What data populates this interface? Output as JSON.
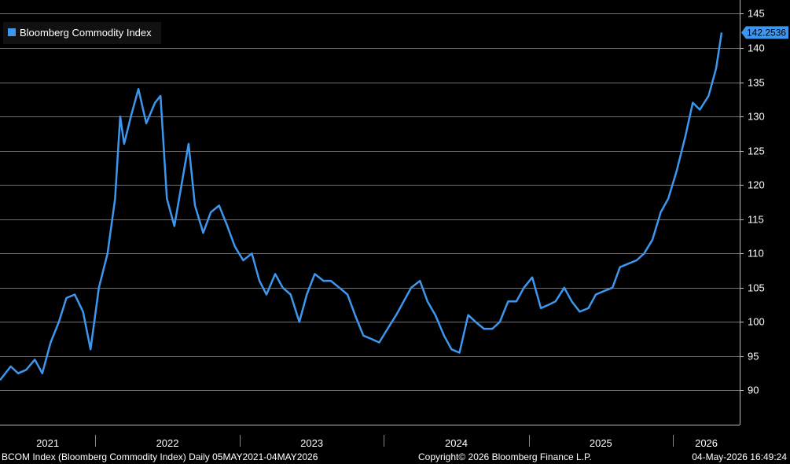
{
  "colors": {
    "background": "#000000",
    "series": "#3d97ee",
    "grid": "#6f6f6f",
    "text": "#ffffff"
  },
  "chart_data": {
    "type": "line",
    "title": "",
    "legend": {
      "placement": "top-left",
      "entries": [
        "Bloomberg Commodity Index"
      ]
    },
    "ylim": [
      85,
      147
    ],
    "y_ticks": [
      90,
      95,
      100,
      105,
      110,
      115,
      120,
      125,
      130,
      135,
      140,
      145
    ],
    "y_tick_labels": [
      "90",
      "95",
      "100",
      "105",
      "110",
      "115",
      "120",
      "125",
      "130",
      "135",
      "140",
      "145"
    ],
    "x_range": [
      "2021-05-05",
      "2026-05-04"
    ],
    "x_year_labels": [
      "2021",
      "2022",
      "2023",
      "2024",
      "2025",
      "2026"
    ],
    "grid": true,
    "last_value_label": "142.2536",
    "series": [
      {
        "name": "Bloomberg Commodity Index",
        "color": "#3d97ee",
        "x": [
          "2021-05-05",
          "2021-06-01",
          "2021-06-20",
          "2021-07-10",
          "2021-08-01",
          "2021-08-20",
          "2021-09-10",
          "2021-10-01",
          "2021-10-20",
          "2021-11-10",
          "2021-12-01",
          "2021-12-20",
          "2022-01-10",
          "2022-02-01",
          "2022-02-20",
          "2022-03-05",
          "2022-03-15",
          "2022-04-01",
          "2022-04-20",
          "2022-05-10",
          "2022-06-01",
          "2022-06-15",
          "2022-07-01",
          "2022-07-20",
          "2022-08-10",
          "2022-08-25",
          "2022-09-10",
          "2022-10-01",
          "2022-10-20",
          "2022-11-10",
          "2022-12-01",
          "2022-12-20",
          "2023-01-10",
          "2023-02-01",
          "2023-02-20",
          "2023-03-10",
          "2023-04-01",
          "2023-04-20",
          "2023-05-10",
          "2023-06-01",
          "2023-06-20",
          "2023-07-10",
          "2023-08-01",
          "2023-08-20",
          "2023-09-10",
          "2023-10-01",
          "2023-10-20",
          "2023-11-10",
          "2023-12-01",
          "2023-12-20",
          "2024-01-10",
          "2024-02-01",
          "2024-02-20",
          "2024-03-10",
          "2024-04-01",
          "2024-04-20",
          "2024-05-10",
          "2024-06-01",
          "2024-06-20",
          "2024-07-10",
          "2024-08-01",
          "2024-08-20",
          "2024-09-10",
          "2024-10-01",
          "2024-10-20",
          "2024-11-10",
          "2024-12-01",
          "2024-12-20",
          "2025-01-10",
          "2025-02-01",
          "2025-02-20",
          "2025-03-10",
          "2025-04-01",
          "2025-04-20",
          "2025-05-10",
          "2025-06-01",
          "2025-06-20",
          "2025-07-10",
          "2025-08-01",
          "2025-08-20",
          "2025-09-10",
          "2025-10-01",
          "2025-10-20",
          "2025-11-10",
          "2025-12-01",
          "2025-12-20",
          "2026-01-10",
          "2026-02-01",
          "2026-02-20",
          "2026-03-10",
          "2026-04-01",
          "2026-04-20",
          "2026-05-04"
        ],
        "values": [
          91.5,
          93.5,
          92.5,
          93,
          94.5,
          92.5,
          97,
          100,
          103.5,
          104,
          101.5,
          96,
          105,
          110,
          118,
          130,
          126,
          130,
          134,
          129,
          132,
          133,
          118,
          114,
          121,
          126,
          117,
          113,
          116,
          117,
          114,
          111,
          109,
          110,
          106,
          104,
          107,
          105,
          104,
          100,
          104,
          107,
          106,
          106,
          105,
          104,
          101,
          98,
          97.5,
          97,
          99,
          101,
          103,
          105,
          106,
          103,
          101,
          98,
          96,
          95.5,
          101,
          100,
          99,
          99,
          100,
          103,
          103,
          105,
          106.5,
          102,
          102.5,
          103,
          105,
          103,
          101.5,
          102,
          104,
          104.5,
          105,
          108,
          108.5,
          109,
          110,
          112,
          116,
          118,
          122,
          127,
          132,
          131,
          133,
          137,
          142.25
        ]
      }
    ]
  },
  "footer": {
    "left": "BCOM Index (Bloomberg Commodity Index) Daily 05MAY2021-04MAY2026",
    "center": "Copyright© 2026 Bloomberg Finance L.P.",
    "right": "04-May-2026 16:49:24"
  }
}
